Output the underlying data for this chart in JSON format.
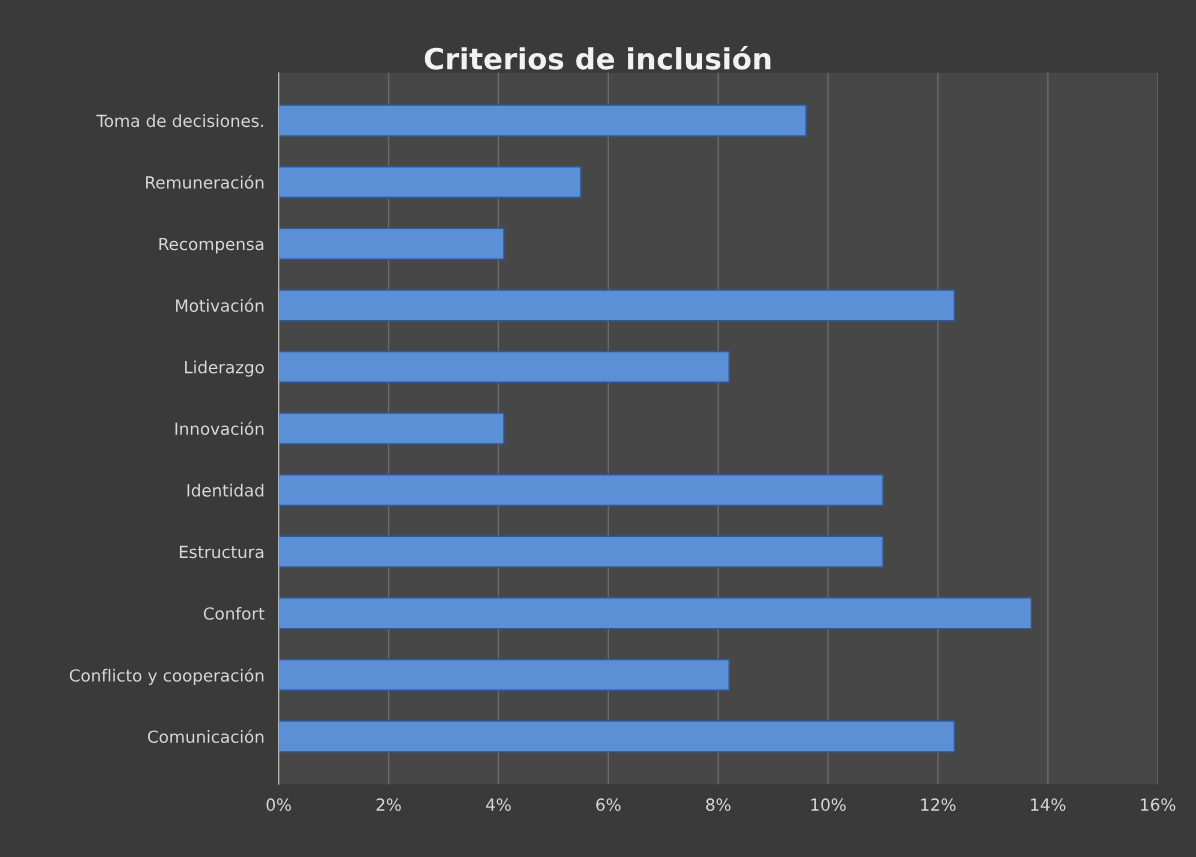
{
  "chart_data": {
    "type": "bar",
    "orientation": "horizontal",
    "title": "Criterios de inclusión",
    "categories": [
      "Toma de decisiones.",
      "Remuneración",
      "Recompensa",
      "Motivación",
      "Liderazgo",
      "Innovación",
      "Identidad",
      "Estructura",
      "Confort",
      "Conflicto y cooperación",
      "Comunicación"
    ],
    "values": [
      9.6,
      5.5,
      4.1,
      12.3,
      8.2,
      4.1,
      11.0,
      11.0,
      13.7,
      8.2,
      12.3
    ],
    "color": "#5b8fd6",
    "xlim": [
      0,
      16
    ],
    "xticks": [
      {
        "value": 0,
        "label": "0%"
      },
      {
        "value": 2,
        "label": "2%"
      },
      {
        "value": 4,
        "label": "4%"
      },
      {
        "value": 6,
        "label": "6%"
      },
      {
        "value": 8,
        "label": "8%"
      },
      {
        "value": 10,
        "label": "10%"
      },
      {
        "value": 12,
        "label": "12%"
      },
      {
        "value": 14,
        "label": "14%"
      },
      {
        "value": 16,
        "label": "16%"
      }
    ],
    "grid": "x",
    "legend": false
  }
}
